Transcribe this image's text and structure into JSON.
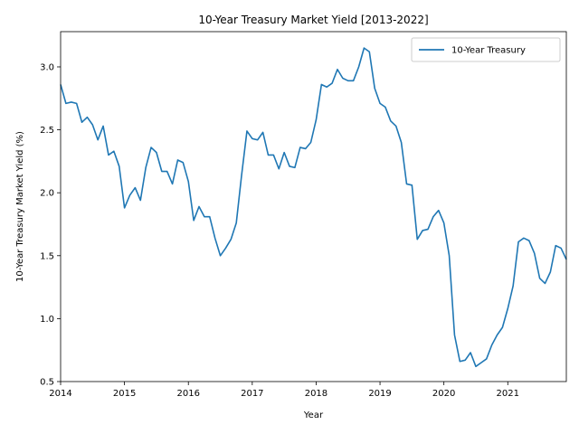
{
  "chart_data": {
    "type": "line",
    "title": "10-Year Treasury Market Yield [2013-2022]",
    "xlabel": "Year",
    "ylabel": "10-Year Treasury Market Yield (%)",
    "xlim": [
      "2014-01",
      "2021-12"
    ],
    "ylim": [
      0.5,
      3.28
    ],
    "grid": false,
    "legend_position": "top-right",
    "x_ticks": [
      "2014",
      "2015",
      "2016",
      "2017",
      "2018",
      "2019",
      "2020",
      "2021"
    ],
    "y_ticks": [
      "0.5",
      "1.0",
      "1.5",
      "2.0",
      "2.5",
      "3.0"
    ],
    "series": [
      {
        "name": "10-Year Treasury",
        "color": "#1f77b4",
        "x": [
          "2014-01",
          "2014-02",
          "2014-03",
          "2014-04",
          "2014-05",
          "2014-06",
          "2014-07",
          "2014-08",
          "2014-09",
          "2014-10",
          "2014-11",
          "2014-12",
          "2015-01",
          "2015-02",
          "2015-03",
          "2015-04",
          "2015-05",
          "2015-06",
          "2015-07",
          "2015-08",
          "2015-09",
          "2015-10",
          "2015-11",
          "2015-12",
          "2016-01",
          "2016-02",
          "2016-03",
          "2016-04",
          "2016-05",
          "2016-06",
          "2016-07",
          "2016-08",
          "2016-09",
          "2016-10",
          "2016-11",
          "2016-12",
          "2017-01",
          "2017-02",
          "2017-03",
          "2017-04",
          "2017-05",
          "2017-06",
          "2017-07",
          "2017-08",
          "2017-09",
          "2017-10",
          "2017-11",
          "2017-12",
          "2018-01",
          "2018-02",
          "2018-03",
          "2018-04",
          "2018-05",
          "2018-06",
          "2018-07",
          "2018-08",
          "2018-09",
          "2018-10",
          "2018-11",
          "2018-12",
          "2019-01",
          "2019-02",
          "2019-03",
          "2019-04",
          "2019-05",
          "2019-06",
          "2019-07",
          "2019-08",
          "2019-09",
          "2019-10",
          "2019-11",
          "2019-12",
          "2020-01",
          "2020-02",
          "2020-03",
          "2020-04",
          "2020-05",
          "2020-06",
          "2020-07",
          "2020-08",
          "2020-09",
          "2020-10",
          "2020-11",
          "2020-12",
          "2021-01",
          "2021-02",
          "2021-03",
          "2021-04",
          "2021-05",
          "2021-06",
          "2021-07",
          "2021-08",
          "2021-09",
          "2021-10",
          "2021-11",
          "2021-12"
        ],
        "values": [
          2.86,
          2.71,
          2.72,
          2.71,
          2.56,
          2.6,
          2.54,
          2.42,
          2.53,
          2.3,
          2.33,
          2.21,
          1.88,
          1.98,
          2.04,
          1.94,
          2.2,
          2.36,
          2.32,
          2.17,
          2.17,
          2.07,
          2.26,
          2.24,
          2.09,
          1.78,
          1.89,
          1.81,
          1.81,
          1.64,
          1.5,
          1.56,
          1.63,
          1.76,
          2.14,
          2.49,
          2.43,
          2.42,
          2.48,
          2.3,
          2.3,
          2.19,
          2.32,
          2.21,
          2.2,
          2.36,
          2.35,
          2.4,
          2.58,
          2.86,
          2.84,
          2.87,
          2.98,
          2.91,
          2.89,
          2.89,
          3.0,
          3.15,
          3.12,
          2.83,
          2.71,
          2.68,
          2.57,
          2.53,
          2.4,
          2.07,
          2.06,
          1.63,
          1.7,
          1.71,
          1.81,
          1.86,
          1.76,
          1.5,
          0.87,
          0.66,
          0.67,
          0.73,
          0.62,
          0.65,
          0.68,
          0.79,
          0.87,
          0.93,
          1.08,
          1.26,
          1.61,
          1.64,
          1.62,
          1.52,
          1.32,
          1.28,
          1.37,
          1.58,
          1.56,
          1.47
        ]
      }
    ]
  }
}
